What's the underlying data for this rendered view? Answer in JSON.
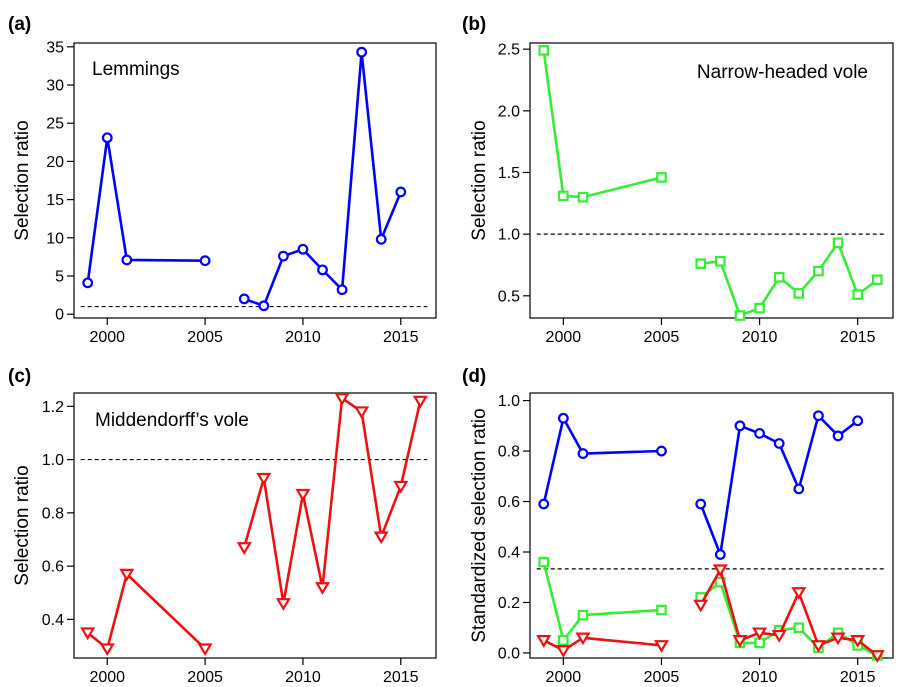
{
  "chart_data": [
    {
      "panel": "(a)",
      "type": "line",
      "label": "Lemmings",
      "ylabel": "Selection ratio",
      "xlim": [
        1998.3,
        2016.8
      ],
      "ylim": [
        -0.5,
        35.5
      ],
      "xticks": [
        2000,
        2005,
        2010,
        2015
      ],
      "yticks": [
        0,
        5,
        10,
        15,
        20,
        25,
        30,
        35
      ],
      "reference_line": 1.0,
      "series": [
        {
          "marker": "circle",
          "color": "#0000ff",
          "segments": [
            [
              [
                1999,
                4.1
              ],
              [
                2000,
                23.1
              ],
              [
                2001,
                7.1
              ],
              [
                2005,
                7.0
              ]
            ],
            [
              [
                2007,
                2.0
              ],
              [
                2008,
                1.1
              ],
              [
                2009,
                7.6
              ],
              [
                2010,
                8.5
              ],
              [
                2011,
                5.8
              ],
              [
                2012,
                3.2
              ],
              [
                2013,
                34.3
              ],
              [
                2014,
                9.8
              ],
              [
                2015,
                16.0
              ]
            ]
          ]
        }
      ]
    },
    {
      "panel": "(b)",
      "type": "line",
      "label": "Narrow-headed vole",
      "ylabel": "Selection ratio",
      "xlim": [
        1998.3,
        2016.8
      ],
      "ylim": [
        0.32,
        2.55
      ],
      "xticks": [
        2000,
        2005,
        2010,
        2015
      ],
      "yticks": [
        0.5,
        1.0,
        1.5,
        2.0,
        2.5
      ],
      "reference_line": 1.0,
      "series": [
        {
          "marker": "square",
          "color": "#33ee33",
          "segments": [
            [
              [
                1999,
                2.49
              ],
              [
                2000,
                1.31
              ],
              [
                2001,
                1.3
              ],
              [
                2005,
                1.46
              ]
            ],
            [
              [
                2007,
                0.76
              ],
              [
                2008,
                0.78
              ],
              [
                2009,
                0.34
              ],
              [
                2010,
                0.4
              ],
              [
                2011,
                0.65
              ],
              [
                2012,
                0.52
              ],
              [
                2013,
                0.7
              ],
              [
                2014,
                0.93
              ],
              [
                2015,
                0.51
              ],
              [
                2016,
                0.63
              ]
            ]
          ]
        }
      ]
    },
    {
      "panel": "(c)",
      "type": "line",
      "label": "Middendorff’s vole",
      "ylabel": "Selection ratio",
      "xlim": [
        1998.3,
        2016.8
      ],
      "ylim": [
        0.255,
        1.25
      ],
      "xticks": [
        2000,
        2005,
        2010,
        2015
      ],
      "yticks": [
        0.4,
        0.6,
        0.8,
        1.0,
        1.2
      ],
      "reference_line": 1.0,
      "series": [
        {
          "marker": "triangle-down",
          "color": "#ee1111",
          "segments": [
            [
              [
                1999,
                0.35
              ],
              [
                2000,
                0.29
              ],
              [
                2001,
                0.57
              ],
              [
                2005,
                0.29
              ]
            ],
            [
              [
                2007,
                0.67
              ],
              [
                2008,
                0.93
              ],
              [
                2009,
                0.46
              ],
              [
                2010,
                0.87
              ],
              [
                2011,
                0.52
              ],
              [
                2012,
                1.23
              ],
              [
                2013,
                1.18
              ],
              [
                2014,
                0.71
              ],
              [
                2015,
                0.9
              ],
              [
                2016,
                1.22
              ]
            ]
          ]
        }
      ]
    },
    {
      "panel": "(d)",
      "type": "line",
      "label": "",
      "ylabel": "Standardized selection ratio",
      "xlim": [
        1998.3,
        2016.8
      ],
      "ylim": [
        -0.02,
        1.03
      ],
      "xticks": [
        2000,
        2005,
        2010,
        2015
      ],
      "yticks": [
        0.0,
        0.2,
        0.4,
        0.6,
        0.8,
        1.0
      ],
      "reference_line": 0.333,
      "series": [
        {
          "marker": "circle",
          "color": "#0000ff",
          "segments": [
            [
              [
                1999,
                0.59
              ],
              [
                2000,
                0.93
              ],
              [
                2001,
                0.79
              ],
              [
                2005,
                0.8
              ]
            ],
            [
              [
                2007,
                0.59
              ],
              [
                2008,
                0.39
              ],
              [
                2009,
                0.9
              ],
              [
                2010,
                0.87
              ],
              [
                2011,
                0.83
              ],
              [
                2012,
                0.65
              ],
              [
                2013,
                0.94
              ],
              [
                2014,
                0.86
              ],
              [
                2015,
                0.92
              ]
            ]
          ]
        },
        {
          "marker": "square",
          "color": "#33ee33",
          "segments": [
            [
              [
                1999,
                0.36
              ],
              [
                2000,
                0.05
              ],
              [
                2001,
                0.15
              ],
              [
                2005,
                0.17
              ]
            ],
            [
              [
                2007,
                0.22
              ],
              [
                2008,
                0.28
              ],
              [
                2009,
                0.04
              ],
              [
                2010,
                0.04
              ],
              [
                2011,
                0.09
              ],
              [
                2012,
                0.1
              ],
              [
                2013,
                0.02
              ],
              [
                2014,
                0.08
              ],
              [
                2015,
                0.03
              ],
              [
                2016,
                -0.01
              ]
            ]
          ]
        },
        {
          "marker": "triangle-down",
          "color": "#ee1111",
          "segments": [
            [
              [
                1999,
                0.05
              ],
              [
                2000,
                0.01
              ],
              [
                2001,
                0.06
              ],
              [
                2005,
                0.03
              ]
            ],
            [
              [
                2007,
                0.19
              ],
              [
                2008,
                0.33
              ],
              [
                2009,
                0.05
              ],
              [
                2010,
                0.08
              ],
              [
                2011,
                0.07
              ],
              [
                2012,
                0.24
              ],
              [
                2013,
                0.03
              ],
              [
                2014,
                0.06
              ],
              [
                2015,
                0.05
              ],
              [
                2016,
                -0.01
              ]
            ]
          ]
        }
      ]
    }
  ]
}
